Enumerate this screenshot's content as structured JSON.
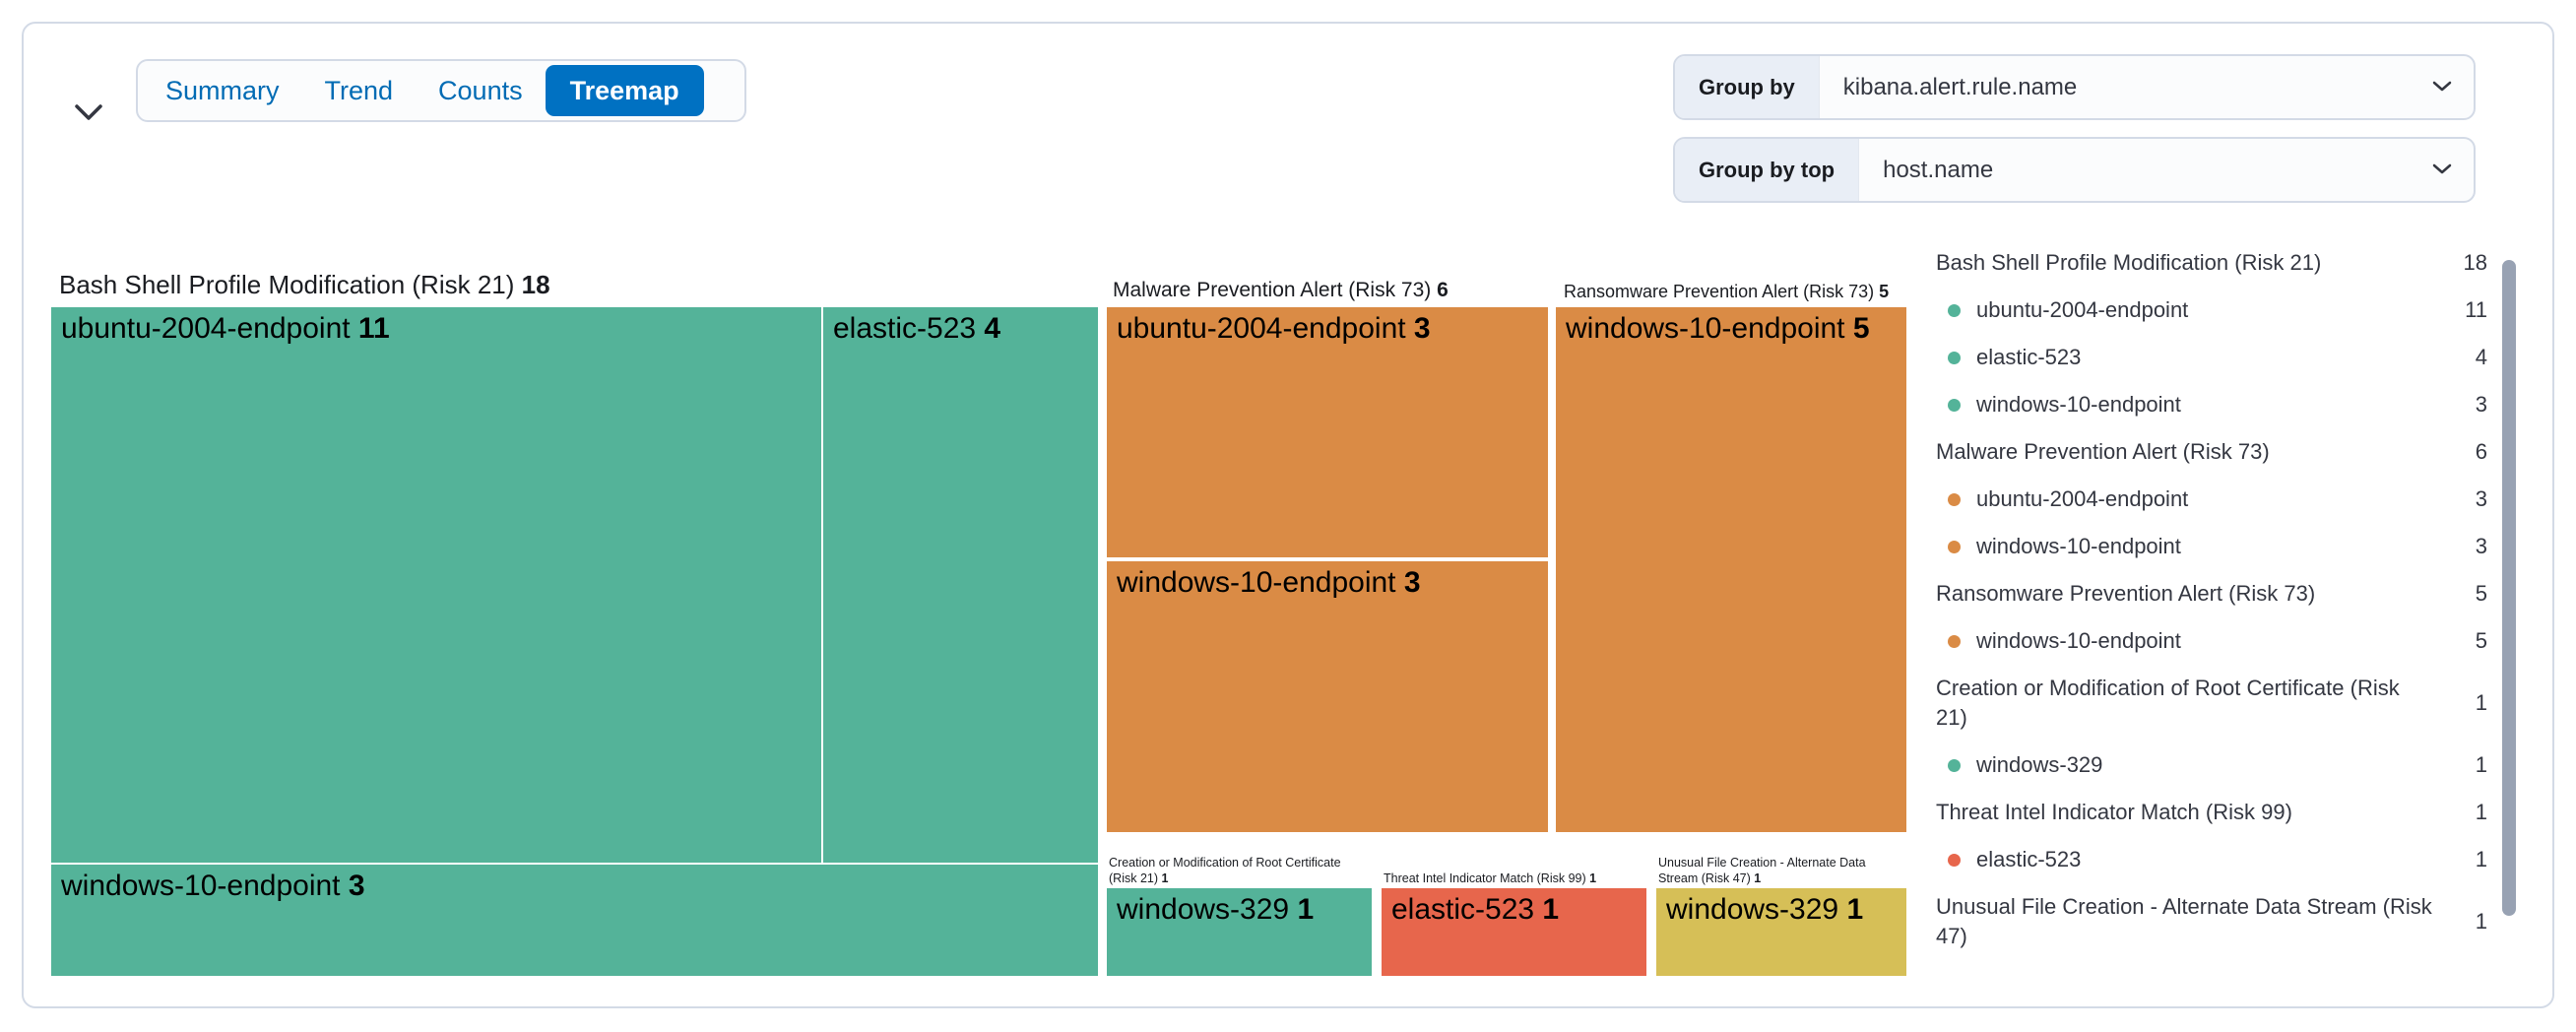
{
  "colors": {
    "accent": "#0071C2",
    "tab_text": "#006BB4",
    "risk_low": "#54B399",
    "risk_medium": "#D6BF57",
    "risk_high": "#DA8B45",
    "risk_critical": "#E7664C"
  },
  "toolbar": {
    "tabs": [
      {
        "label": "Summary",
        "selected": false
      },
      {
        "label": "Trend",
        "selected": false
      },
      {
        "label": "Counts",
        "selected": false
      },
      {
        "label": "Treemap",
        "selected": true
      }
    ],
    "group_by": {
      "label": "Group by",
      "value": "kibana.alert.rule.name"
    },
    "group_by_top": {
      "label": "Group by top",
      "value": "host.name"
    }
  },
  "chart_data": {
    "type": "treemap",
    "groups": [
      {
        "name": "Bash Shell Profile Modification (Risk 21)",
        "count": 18,
        "color": "#54B399",
        "children": [
          {
            "name": "ubuntu-2004-endpoint",
            "count": 11
          },
          {
            "name": "elastic-523",
            "count": 4
          },
          {
            "name": "windows-10-endpoint",
            "count": 3
          }
        ]
      },
      {
        "name": "Malware Prevention Alert (Risk 73)",
        "count": 6,
        "color": "#DA8B45",
        "children": [
          {
            "name": "ubuntu-2004-endpoint",
            "count": 3
          },
          {
            "name": "windows-10-endpoint",
            "count": 3
          }
        ]
      },
      {
        "name": "Ransomware Prevention Alert (Risk 73)",
        "count": 5,
        "color": "#DA8B45",
        "children": [
          {
            "name": "windows-10-endpoint",
            "count": 5
          }
        ]
      },
      {
        "name": "Creation or Modification of Root Certificate (Risk 21)",
        "count": 1,
        "color": "#54B399",
        "children": [
          {
            "name": "windows-329",
            "count": 1
          }
        ]
      },
      {
        "name": "Threat Intel Indicator Match (Risk 99)",
        "count": 1,
        "color": "#E7664C",
        "children": [
          {
            "name": "elastic-523",
            "count": 1
          }
        ]
      },
      {
        "name": "Unusual File Creation - Alternate Data Stream (Risk 47)",
        "count": 1,
        "color": "#D6BF57",
        "children": [
          {
            "name": "windows-329",
            "count": 1
          }
        ]
      }
    ]
  },
  "legend": {
    "rows": [
      {
        "type": "title",
        "label": "Bash Shell Profile Modification (Risk 21)",
        "count": 18
      },
      {
        "type": "item",
        "label": "ubuntu-2004-endpoint",
        "count": 11,
        "color": "#54B399"
      },
      {
        "type": "item",
        "label": "elastic-523",
        "count": 4,
        "color": "#54B399"
      },
      {
        "type": "item",
        "label": "windows-10-endpoint",
        "count": 3,
        "color": "#54B399"
      },
      {
        "type": "title",
        "label": "Malware Prevention Alert (Risk 73)",
        "count": 6
      },
      {
        "type": "item",
        "label": "ubuntu-2004-endpoint",
        "count": 3,
        "color": "#DA8B45"
      },
      {
        "type": "item",
        "label": "windows-10-endpoint",
        "count": 3,
        "color": "#DA8B45"
      },
      {
        "type": "title",
        "label": "Ransomware Prevention Alert (Risk 73)",
        "count": 5
      },
      {
        "type": "item",
        "label": "windows-10-endpoint",
        "count": 5,
        "color": "#DA8B45"
      },
      {
        "type": "title",
        "label": "Creation or Modification of Root Certificate (Risk 21)",
        "count": 1
      },
      {
        "type": "item",
        "label": "windows-329",
        "count": 1,
        "color": "#54B399"
      },
      {
        "type": "title",
        "label": "Threat Intel Indicator Match (Risk 99)",
        "count": 1
      },
      {
        "type": "item",
        "label": "elastic-523",
        "count": 1,
        "color": "#E7664C"
      },
      {
        "type": "title",
        "label": "Unusual File Creation - Alternate Data Stream (Risk 47)",
        "count": 1
      }
    ]
  }
}
